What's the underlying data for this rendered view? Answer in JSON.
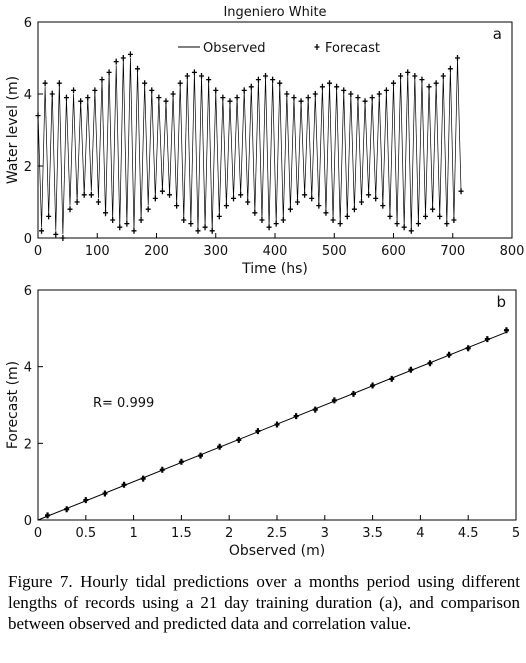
{
  "chart_data": [
    {
      "type": "line",
      "title": "Ingeniero White",
      "panel_label": "a",
      "x_label": "Time (hs)",
      "y_label": "Water level (m)",
      "x": [
        0,
        6,
        12,
        18,
        24,
        30,
        36,
        42,
        48,
        54,
        60,
        66,
        72,
        78,
        84,
        90,
        96,
        102,
        108,
        114,
        120,
        126,
        132,
        138,
        144,
        150,
        156,
        162,
        168,
        174,
        180,
        186,
        192,
        198,
        204,
        210,
        216,
        222,
        228,
        234,
        240,
        246,
        252,
        258,
        264,
        270,
        276,
        282,
        288,
        294,
        300,
        306,
        312,
        318,
        324,
        330,
        336,
        342,
        348,
        354,
        360,
        366,
        372,
        378,
        384,
        390,
        396,
        402,
        408,
        414,
        420,
        426,
        432,
        438,
        444,
        450,
        456,
        462,
        468,
        474,
        480,
        486,
        492,
        498,
        504,
        510,
        516,
        522,
        528,
        534,
        540,
        546,
        552,
        558,
        564,
        570,
        576,
        582,
        588,
        594,
        600,
        606,
        612,
        618,
        624,
        630,
        636,
        642,
        648,
        654,
        660,
        666,
        672,
        678,
        684,
        690,
        696,
        702,
        708,
        714
      ],
      "series": [
        {
          "name": "Observed",
          "mode": "line",
          "color": "#000000",
          "values": [
            3.5,
            0.3,
            4.2,
            0.6,
            4.1,
            0.2,
            4.3,
            0.1,
            3.9,
            0.9,
            4.0,
            1.0,
            3.8,
            1.2,
            3.9,
            1.3,
            4.1,
            1.1,
            4.4,
            0.6,
            4.6,
            0.5,
            4.8,
            0.3,
            5.0,
            0.4,
            5.0,
            0.2,
            4.7,
            0.5,
            4.3,
            0.9,
            4.1,
            1.1,
            3.9,
            1.3,
            3.8,
            1.2,
            4.0,
            0.9,
            4.3,
            0.5,
            4.5,
            0.4,
            4.6,
            0.2,
            4.5,
            0.3,
            4.4,
            0.2,
            4.1,
            0.6,
            3.9,
            0.9,
            3.8,
            1.1,
            3.9,
            1.2,
            4.1,
            1.0,
            4.2,
            0.7,
            4.4,
            0.5,
            4.5,
            0.3,
            4.4,
            0.4,
            4.3,
            0.5,
            4.0,
            0.8,
            3.9,
            1.0,
            3.8,
            1.2,
            3.9,
            1.1,
            4.0,
            0.9,
            4.2,
            0.7,
            4.3,
            0.5,
            4.2,
            0.4,
            4.1,
            0.6,
            4.0,
            0.8,
            3.9,
            1.0,
            3.8,
            1.2,
            3.9,
            1.1,
            4.0,
            0.9,
            4.1,
            0.6,
            4.3,
            0.4,
            4.5,
            0.3,
            4.6,
            0.2,
            4.5,
            0.4,
            4.4,
            0.6,
            4.2,
            0.8,
            4.3,
            0.6,
            4.5,
            0.4,
            4.7,
            0.5,
            5.0,
            1.3
          ]
        },
        {
          "name": "Forecast",
          "mode": "markers",
          "color": "#000000",
          "values": [
            3.4,
            0.2,
            4.3,
            0.6,
            4.0,
            0.1,
            4.3,
            0.0,
            3.9,
            0.8,
            4.1,
            1.0,
            3.8,
            1.2,
            3.9,
            1.2,
            4.1,
            1.0,
            4.4,
            0.7,
            4.6,
            0.5,
            4.9,
            0.3,
            5.0,
            0.4,
            5.1,
            0.2,
            4.7,
            0.5,
            4.3,
            0.8,
            4.1,
            1.1,
            3.9,
            1.3,
            3.8,
            1.2,
            4.0,
            0.9,
            4.3,
            0.5,
            4.5,
            0.4,
            4.6,
            0.2,
            4.5,
            0.3,
            4.4,
            0.2,
            4.1,
            0.6,
            3.9,
            0.9,
            3.8,
            1.1,
            3.9,
            1.2,
            4.1,
            1.0,
            4.2,
            0.7,
            4.4,
            0.5,
            4.5,
            0.3,
            4.4,
            0.4,
            4.3,
            0.5,
            4.0,
            0.8,
            3.9,
            1.0,
            3.8,
            1.2,
            3.9,
            1.1,
            4.0,
            0.9,
            4.2,
            0.7,
            4.3,
            0.5,
            4.2,
            0.4,
            4.1,
            0.6,
            4.0,
            0.8,
            3.9,
            1.0,
            3.8,
            1.2,
            3.9,
            1.1,
            4.0,
            0.9,
            4.1,
            0.6,
            4.3,
            0.4,
            4.5,
            0.3,
            4.6,
            0.2,
            4.5,
            0.4,
            4.4,
            0.6,
            4.2,
            0.8,
            4.3,
            0.6,
            4.5,
            0.4,
            4.7,
            0.5,
            5.0,
            1.3
          ]
        }
      ],
      "xlim": [
        0,
        800
      ],
      "xticks": [
        0,
        100,
        200,
        300,
        400,
        500,
        600,
        700,
        800
      ],
      "ylim": [
        0,
        6
      ],
      "yticks": [
        0,
        2,
        4,
        6
      ],
      "legend": "top"
    },
    {
      "type": "scatter",
      "panel_label": "b",
      "annotation": "R= 0.999",
      "x_label": "Observed (m)",
      "y_label": "Forecast (m)",
      "series": [
        {
          "color": "#000000",
          "x": [
            0.1,
            0.3,
            0.5,
            0.7,
            0.9,
            1.1,
            1.3,
            1.5,
            1.7,
            1.9,
            2.1,
            2.3,
            2.5,
            2.7,
            2.9,
            3.1,
            3.3,
            3.5,
            3.7,
            3.9,
            4.1,
            4.3,
            4.5,
            4.7,
            4.9
          ],
          "values": [
            0.12,
            0.28,
            0.52,
            0.69,
            0.92,
            1.08,
            1.31,
            1.52,
            1.68,
            1.91,
            2.09,
            2.32,
            2.49,
            2.71,
            2.88,
            3.12,
            3.29,
            3.51,
            3.68,
            3.92,
            4.09,
            4.31,
            4.48,
            4.72,
            4.95
          ]
        }
      ],
      "xlim": [
        0,
        5
      ],
      "xticks": [
        0,
        0.5,
        1,
        1.5,
        2,
        2.5,
        3,
        3.5,
        4,
        4.5,
        5
      ],
      "ylim": [
        0,
        6
      ],
      "yticks": [
        0,
        2,
        4,
        6
      ]
    }
  ],
  "caption": "Figure 7. Hourly tidal predictions over a months period using different lengths of records using a 21 day training duration (a), and comparison between observed and predicted data and correlation value."
}
